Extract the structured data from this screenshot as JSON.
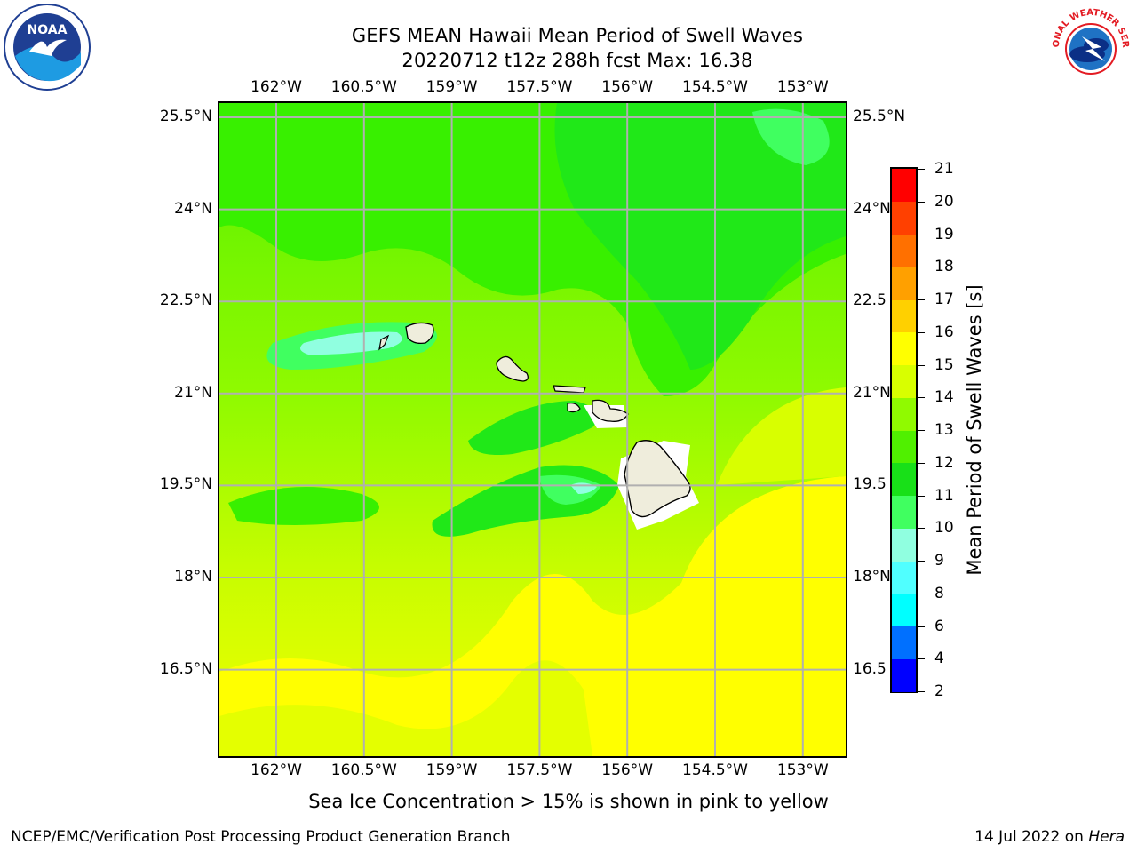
{
  "title": {
    "line1": "GEFS MEAN Hawaii Mean Period of Swell Waves",
    "line2": "20220712 t12z 288h fcst   Max: 16.38"
  },
  "subtitle": "Sea Ice Concentration > 15% is shown in pink to yellow",
  "footer": {
    "left": "NCEP/EMC/Verification Post Processing Product Generation Branch",
    "right_prefix": "14 Jul 2022 on ",
    "right_host": "Hera"
  },
  "logos": {
    "noaa": {
      "label": "NOAA",
      "icon": "noaa-logo"
    },
    "nws": {
      "label": "NATIONAL WEATHER SERVICE",
      "icon": "nws-logo"
    }
  },
  "map": {
    "lon_ticks": [
      "162°W",
      "160.5°W",
      "159°W",
      "157.5°W",
      "156°W",
      "154.5°W",
      "153°W"
    ],
    "lat_ticks": [
      "25.5°N",
      "24°N",
      "22.5°N",
      "21°N",
      "19.5°N",
      "18°N",
      "16.5°N"
    ],
    "lat_ticks_right": [
      "25.5°N",
      "24°N",
      "22.5",
      "21°N",
      "19.5",
      "18°N",
      "16.5"
    ],
    "lon_values": [
      -162,
      -160.5,
      -159,
      -157.5,
      -156,
      -154.5,
      -153
    ],
    "lat_values": [
      25.5,
      24,
      22.5,
      21,
      19.5,
      18,
      16.5
    ],
    "grid": true,
    "field": "Mean Period of Swell Waves",
    "max_value": 16.38
  },
  "colorbar": {
    "title": "Mean Period of Swell Waves [s]",
    "levels": [
      2,
      4,
      6,
      8,
      9,
      10,
      11,
      12,
      13,
      14,
      15,
      16,
      17,
      18,
      19,
      20,
      21
    ],
    "labels": [
      "2",
      "4",
      "6",
      "8",
      "9",
      "10",
      "11",
      "12",
      "13",
      "14",
      "15",
      "16",
      "17",
      "18",
      "19",
      "20",
      "21"
    ],
    "colors": [
      "#0000ff",
      "#0070ff",
      "#00ffff",
      "#50ffff",
      "#90ffe0",
      "#40ff60",
      "#18e018",
      "#50f000",
      "#90fa00",
      "#d8ff00",
      "#ffff00",
      "#ffd000",
      "#ffa000",
      "#ff7000",
      "#ff4000",
      "#ff0000"
    ],
    "accent_colors": {
      "dominant_low_field": "#90fa00",
      "dominant_south": "#ffff00",
      "northern_green": "#30f000",
      "land": "#efeddc"
    }
  }
}
